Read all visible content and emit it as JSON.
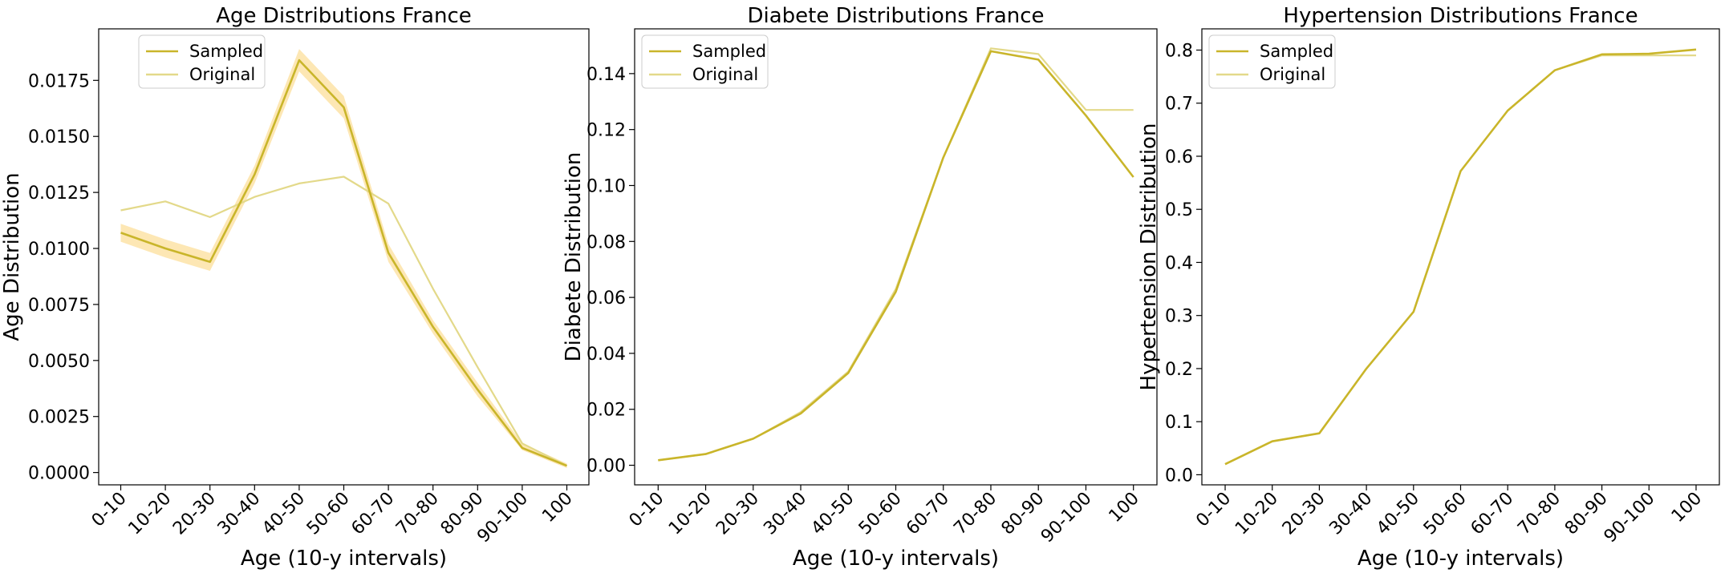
{
  "colors": {
    "sampled_line": "#c9b52a",
    "original_line": "#e3d98a",
    "band": "#fde3a7"
  },
  "chart_data": [
    {
      "type": "line",
      "title": "Age Distributions France",
      "xlabel": "Age (10-y intervals)",
      "ylabel": "Age Distribution",
      "categories": [
        "0-10",
        "10-20",
        "20-30",
        "30-40",
        "40-50",
        "50-60",
        "60-70",
        "70-80",
        "80-90",
        "90-100",
        "100"
      ],
      "ylim": [
        -0.00055,
        0.0198
      ],
      "yticks": [
        "0.0000",
        "0.0025",
        "0.0050",
        "0.0075",
        "0.0100",
        "0.0125",
        "0.0150",
        "0.0175"
      ],
      "legend_position": "top-left",
      "series": [
        {
          "name": "Sampled",
          "values": [
            0.0107,
            0.01,
            0.0094,
            0.0133,
            0.0184,
            0.0163,
            0.0098,
            0.0065,
            0.0037,
            0.0011,
            0.0003
          ],
          "lower": [
            0.0103,
            0.0096,
            0.009,
            0.0129,
            0.0179,
            0.0158,
            0.0094,
            0.0062,
            0.0034,
            0.001,
            0.0002
          ],
          "upper": [
            0.0111,
            0.0104,
            0.0098,
            0.0137,
            0.0189,
            0.0168,
            0.0102,
            0.0068,
            0.004,
            0.0013,
            0.0004
          ]
        },
        {
          "name": "Original",
          "values": [
            0.0117,
            0.0121,
            0.0114,
            0.0123,
            0.0129,
            0.0132,
            0.012,
            0.0082,
            0.0047,
            0.0013,
            0.0003
          ]
        }
      ]
    },
    {
      "type": "line",
      "title": "Diabete Distributions France",
      "xlabel": "Age (10-y intervals)",
      "ylabel": "Diabete Distribution",
      "categories": [
        "0-10",
        "10-20",
        "20-30",
        "30-40",
        "40-50",
        "50-60",
        "60-70",
        "70-80",
        "80-90",
        "90-100",
        "100"
      ],
      "ylim": [
        -0.007,
        0.156
      ],
      "yticks": [
        "0.00",
        "0.02",
        "0.04",
        "0.06",
        "0.08",
        "0.10",
        "0.12",
        "0.14"
      ],
      "legend_position": "top-left",
      "series": [
        {
          "name": "Sampled",
          "values": [
            0.0018,
            0.004,
            0.0095,
            0.0185,
            0.033,
            0.062,
            0.11,
            0.148,
            0.145,
            0.125,
            0.103
          ]
        },
        {
          "name": "Original",
          "values": [
            0.0018,
            0.004,
            0.0095,
            0.019,
            0.0335,
            0.063,
            0.11,
            0.149,
            0.147,
            0.127,
            0.127
          ]
        }
      ]
    },
    {
      "type": "line",
      "title": "Hypertension Distributions France",
      "xlabel": "Age (10-y intervals)",
      "ylabel": "Hypertension Distribution",
      "categories": [
        "0-10",
        "10-20",
        "20-30",
        "30-40",
        "40-50",
        "50-60",
        "60-70",
        "70-80",
        "80-90",
        "90-100",
        "100"
      ],
      "ylim": [
        -0.019,
        0.84
      ],
      "yticks": [
        "0.0",
        "0.1",
        "0.2",
        "0.3",
        "0.4",
        "0.5",
        "0.6",
        "0.7",
        "0.8"
      ],
      "legend_position": "top-left",
      "series": [
        {
          "name": "Sampled",
          "values": [
            0.02,
            0.063,
            0.078,
            0.2,
            0.307,
            0.572,
            0.686,
            0.762,
            0.792,
            0.793,
            0.801
          ]
        },
        {
          "name": "Original",
          "values": [
            0.02,
            0.063,
            0.078,
            0.2,
            0.307,
            0.572,
            0.686,
            0.762,
            0.79,
            0.79,
            0.79
          ]
        }
      ]
    }
  ]
}
